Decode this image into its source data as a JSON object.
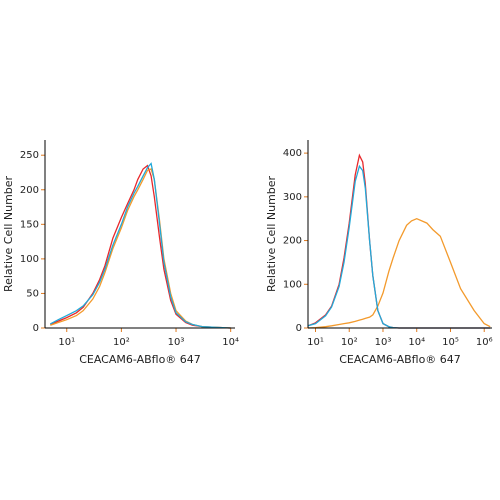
{
  "chart_data": [
    {
      "type": "line",
      "xlabel": "CEACAM6-ABflo® 647",
      "ylabel": "Relative Cell Number",
      "xscale": "log",
      "xlim": [
        4,
        12000
      ],
      "ylim": [
        0,
        272
      ],
      "xticks": [
        {
          "value": 10,
          "label": "10¹"
        },
        {
          "value": 100,
          "label": "10²"
        },
        {
          "value": 1000,
          "label": "10³"
        },
        {
          "value": 10000,
          "label": "10⁴"
        }
      ],
      "yticks": [
        0,
        50,
        100,
        150,
        200,
        250
      ],
      "x": [
        5,
        7,
        10,
        15,
        20,
        30,
        40,
        50,
        70,
        100,
        130,
        170,
        200,
        250,
        300,
        350,
        400,
        500,
        600,
        800,
        1000,
        1500,
        2000,
        3000,
        5000,
        10000
      ],
      "series": [
        {
          "color": "#e8282b",
          "values": [
            5,
            10,
            15,
            22,
            30,
            50,
            70,
            90,
            130,
            160,
            180,
            200,
            215,
            230,
            235,
            220,
            190,
            130,
            85,
            40,
            20,
            8,
            4,
            2,
            1,
            0
          ]
        },
        {
          "color": "#f39a2c",
          "values": [
            4,
            8,
            12,
            18,
            25,
            42,
            60,
            80,
            115,
            145,
            170,
            190,
            200,
            215,
            228,
            230,
            215,
            155,
            100,
            50,
            25,
            10,
            5,
            2,
            1,
            0
          ]
        },
        {
          "color": "#21a9d9",
          "values": [
            6,
            12,
            18,
            25,
            32,
            48,
            66,
            85,
            120,
            150,
            175,
            195,
            205,
            220,
            232,
            238,
            215,
            150,
            95,
            45,
            22,
            9,
            5,
            2,
            1,
            0
          ]
        }
      ]
    },
    {
      "type": "line",
      "xlabel": "CEACAM6-ABflo® 647",
      "ylabel": "Relative Cell Number",
      "xscale": "log",
      "xlim": [
        6,
        1700000
      ],
      "ylim": [
        0,
        430
      ],
      "xticks": [
        {
          "value": 10,
          "label": "10¹"
        },
        {
          "value": 100,
          "label": "10²"
        },
        {
          "value": 1000,
          "label": "10³"
        },
        {
          "value": 10000,
          "label": "10⁴"
        },
        {
          "value": 100000,
          "label": "10⁵"
        },
        {
          "value": 1000000,
          "label": "10⁶"
        }
      ],
      "yticks": [
        0,
        100,
        200,
        300,
        400
      ],
      "x": [
        6,
        10,
        20,
        30,
        50,
        70,
        100,
        150,
        200,
        250,
        300,
        400,
        500,
        700,
        1000,
        1500,
        2000,
        3000,
        5000,
        7000,
        10000,
        20000,
        30000,
        50000,
        100000,
        200000,
        500000,
        1000000,
        1500000
      ],
      "series": [
        {
          "color": "#f39a2c",
          "values": [
            0,
            1,
            3,
            5,
            8,
            10,
            12,
            15,
            18,
            20,
            22,
            25,
            30,
            50,
            80,
            130,
            160,
            200,
            235,
            245,
            250,
            240,
            225,
            210,
            150,
            90,
            40,
            10,
            3
          ]
        },
        {
          "color": "#e8282b",
          "values": [
            5,
            12,
            30,
            50,
            100,
            160,
            240,
            350,
            395,
            380,
            330,
            200,
            120,
            40,
            10,
            3,
            1,
            0,
            0,
            0,
            0,
            0,
            0,
            0,
            0,
            0,
            0,
            0,
            0
          ]
        },
        {
          "color": "#21a9d9",
          "values": [
            5,
            10,
            28,
            48,
            95,
            150,
            230,
            335,
            370,
            360,
            320,
            200,
            120,
            40,
            10,
            3,
            1,
            0,
            0,
            0,
            0,
            0,
            0,
            0,
            0,
            0,
            0,
            0,
            0
          ]
        }
      ]
    }
  ]
}
